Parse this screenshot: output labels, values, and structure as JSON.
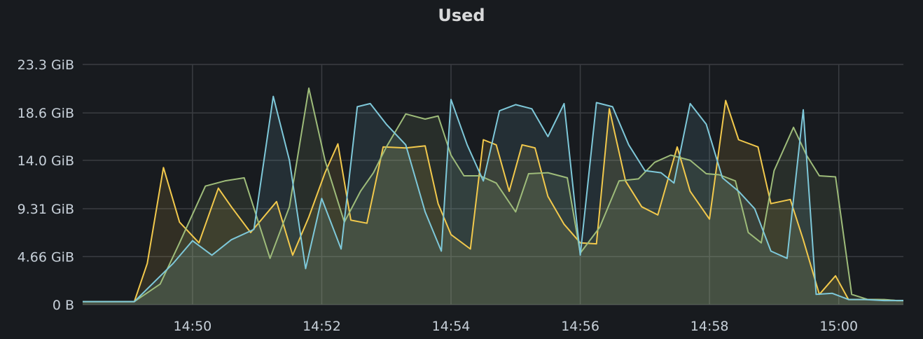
{
  "panel": {
    "title": "Used"
  },
  "chart_data": {
    "type": "area",
    "title": "Used",
    "xlabel": "",
    "ylabel": "",
    "y_ticks": [
      "0 B",
      "4.66 GiB",
      "9.31 GiB",
      "14.0 GiB",
      "18.6 GiB",
      "23.3 GiB"
    ],
    "y_tick_values": [
      0,
      4.66,
      9.31,
      14.0,
      18.6,
      23.3
    ],
    "ylim": [
      0,
      23.3
    ],
    "y_unit": "GiB",
    "x_ticks": [
      "14:50",
      "14:52",
      "14:54",
      "14:56",
      "14:58",
      "15:00"
    ],
    "x_tick_values": [
      14.833,
      14.867,
      14.9,
      14.933,
      14.967,
      15.0
    ],
    "x_axis_format": "HH:MM",
    "x_tick_minutes": [
      50,
      52,
      54,
      56,
      58,
      60
    ],
    "xlim_minutes": [
      48.3,
      61.0
    ],
    "grid": true,
    "legend": "none",
    "series": [
      {
        "color": "#f2c94c",
        "x_minutes": [
          48.3,
          49.1,
          49.3,
          49.55,
          49.8,
          50.1,
          50.4,
          50.6,
          50.9,
          51.3,
          51.55,
          51.8,
          52.05,
          52.25,
          52.45,
          52.7,
          52.95,
          53.3,
          53.6,
          53.8,
          54.0,
          54.3,
          54.5,
          54.7,
          54.9,
          55.1,
          55.3,
          55.5,
          55.75,
          56.0,
          56.25,
          56.45,
          56.7,
          56.95,
          57.2,
          57.5,
          57.7,
          58.0,
          58.25,
          58.45,
          58.75,
          58.95,
          59.25,
          59.45,
          59.7,
          59.95,
          60.15,
          60.4,
          60.6,
          60.9,
          61.0
        ],
        "values": [
          0.3,
          0.3,
          4.0,
          13.3,
          8.0,
          6.0,
          11.3,
          9.5,
          7.0,
          10.0,
          4.8,
          8.5,
          12.8,
          15.6,
          8.2,
          7.9,
          15.3,
          15.2,
          15.4,
          9.8,
          6.8,
          5.4,
          16.0,
          15.5,
          11.0,
          15.5,
          15.2,
          10.5,
          7.8,
          6.0,
          5.9,
          19.0,
          12.0,
          9.5,
          8.7,
          15.3,
          11.0,
          8.3,
          19.8,
          16.0,
          15.3,
          9.8,
          10.2,
          6.3,
          1.0,
          2.8,
          0.5,
          0.5,
          0.5,
          0.4,
          0.4
        ]
      },
      {
        "color": "#9ebc7a",
        "x_minutes": [
          48.3,
          49.1,
          49.5,
          49.8,
          50.2,
          50.5,
          50.8,
          51.2,
          51.5,
          51.8,
          52.05,
          52.35,
          52.6,
          52.8,
          53.0,
          53.3,
          53.6,
          53.8,
          54.0,
          54.2,
          54.45,
          54.7,
          55.0,
          55.2,
          55.5,
          55.8,
          56.0,
          56.3,
          56.6,
          56.9,
          57.15,
          57.4,
          57.7,
          57.95,
          58.15,
          58.4,
          58.6,
          58.8,
          59.0,
          59.3,
          59.5,
          59.7,
          59.95,
          60.2,
          60.45,
          60.7,
          60.9,
          61.0
        ],
        "values": [
          0.3,
          0.3,
          2.0,
          6.0,
          11.5,
          12.0,
          12.3,
          4.5,
          9.5,
          21.0,
          14.0,
          8.0,
          11.0,
          12.8,
          15.3,
          18.5,
          18.0,
          18.3,
          14.5,
          12.5,
          12.5,
          11.8,
          9.0,
          12.7,
          12.8,
          12.3,
          5.0,
          7.5,
          12.0,
          12.2,
          13.8,
          14.5,
          14.0,
          12.7,
          12.6,
          12.0,
          7.0,
          6.0,
          13.0,
          17.2,
          14.5,
          12.5,
          12.4,
          1.0,
          0.5,
          0.5,
          0.4,
          0.4
        ]
      },
      {
        "color": "#7ec8d9",
        "x_minutes": [
          48.3,
          49.1,
          49.7,
          50.0,
          50.3,
          50.6,
          50.95,
          51.25,
          51.5,
          51.75,
          52.0,
          52.3,
          52.55,
          52.75,
          53.0,
          53.3,
          53.6,
          53.85,
          54.0,
          54.25,
          54.5,
          54.75,
          55.0,
          55.25,
          55.5,
          55.75,
          56.0,
          56.25,
          56.5,
          56.75,
          57.0,
          57.25,
          57.45,
          57.7,
          57.95,
          58.2,
          58.45,
          58.7,
          58.95,
          59.2,
          59.45,
          59.65,
          59.9,
          60.15,
          60.4,
          60.7,
          61.0
        ],
        "values": [
          0.3,
          0.3,
          4.0,
          6.2,
          4.8,
          6.3,
          7.3,
          20.2,
          14.0,
          3.5,
          10.3,
          5.4,
          19.2,
          19.5,
          17.5,
          15.5,
          9.0,
          5.2,
          19.9,
          15.5,
          12.0,
          18.8,
          19.4,
          19.0,
          16.3,
          19.5,
          4.8,
          19.6,
          19.2,
          15.5,
          13.0,
          12.8,
          11.8,
          19.5,
          17.5,
          12.3,
          11.0,
          9.3,
          5.2,
          4.5,
          18.9,
          1.0,
          1.1,
          0.5,
          0.5,
          0.4,
          0.4
        ]
      }
    ]
  }
}
